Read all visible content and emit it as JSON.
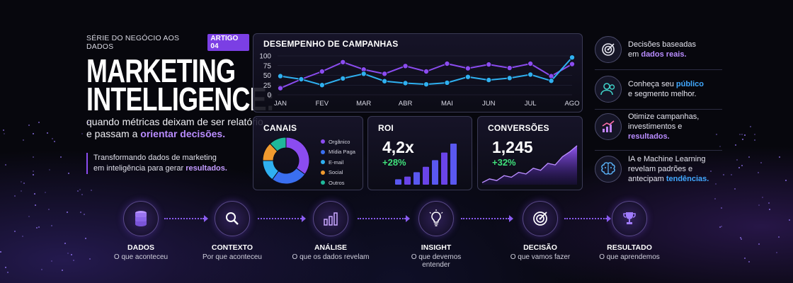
{
  "hero": {
    "series": "SÉRIE DO NEGÓCIO AOS DADOS",
    "badge": "ARTIGO 04",
    "title_line1": "MARKETING",
    "title_line2": "INTELLIGENCE:",
    "subtitle_line1": "quando métricas deixam de ser relatório",
    "subtitle_line2_a": "e passam a ",
    "subtitle_line2_hl": "orientar decisões.",
    "tagline_line1": "Transformando dados de marketing",
    "tagline_line2_a": "em inteligência para gerar ",
    "tagline_line2_hl": "resultados."
  },
  "campaign": {
    "title": "DESEMPENHO DE CAMPANHAS",
    "accent_purple": "#8b4cf0",
    "accent_cyan": "#2fb0f0"
  },
  "canais": {
    "title": "CANAIS",
    "items": [
      {
        "label": "Orgânico",
        "color": "#8b4cf0"
      },
      {
        "label": "Mídia Paga",
        "color": "#3a6ff0"
      },
      {
        "label": "E-mail",
        "color": "#2fb0f0"
      },
      {
        "label": "Social",
        "color": "#f09a2f"
      },
      {
        "label": "Outros",
        "color": "#1fb89a"
      }
    ]
  },
  "roi": {
    "title": "ROI",
    "value": "4,2x",
    "delta": "+28%"
  },
  "conversoes": {
    "title": "CONVERSÕES",
    "value": "1,245",
    "delta": "+32%"
  },
  "features": [
    {
      "icon": "target-icon",
      "line1": "Decisões baseadas",
      "line2_a": "em ",
      "line2_hl": "dados reais.",
      "hl_color": "purple"
    },
    {
      "icon": "users-icon",
      "line1_a": "Conheça seu ",
      "line1_hl": "público",
      "line2": "e segmento melhor.",
      "hl_color": "blue"
    },
    {
      "icon": "growth-chart-icon",
      "line1": "Otimize campanhas,",
      "line2": "investimentos e",
      "line3_hl": "resultados.",
      "hl_color": "purple"
    },
    {
      "icon": "brain-icon",
      "line1": "IA e Machine Learning",
      "line2": "revelam padrões e",
      "line3_a": "antecipam ",
      "line3_hl": "tendências.",
      "hl_color": "blue"
    }
  ],
  "flow": [
    {
      "icon": "database-icon",
      "label": "DADOS",
      "desc": "O que aconteceu"
    },
    {
      "icon": "magnifier-icon",
      "label": "CONTEXTO",
      "desc": "Por que aconteceu"
    },
    {
      "icon": "bar-chart-icon",
      "label": "ANÁLISE",
      "desc": "O que os dados revelam"
    },
    {
      "icon": "lightbulb-icon",
      "label": "INSIGHT",
      "desc": "O que devemos entender"
    },
    {
      "icon": "target-icon",
      "label": "DECISÃO",
      "desc": "O que vamos fazer"
    },
    {
      "icon": "trophy-icon",
      "label": "RESULTADO",
      "desc": "O que aprendemos"
    }
  ],
  "chart_data": [
    {
      "type": "line",
      "title": "DESEMPENHO DE CAMPANHAS",
      "categories": [
        "JAN",
        "FEV",
        "MAR",
        "ABR",
        "MAI",
        "JUN",
        "JUL",
        "AGO"
      ],
      "yticks": [
        0,
        25,
        50,
        75,
        100
      ],
      "ylim": [
        0,
        100
      ],
      "grid": true,
      "series": [
        {
          "color": "#8b4cf0",
          "x": [
            0,
            0.5,
            1,
            1.5,
            2,
            2.5,
            3,
            3.5,
            4,
            4.5,
            5,
            5.5,
            6,
            6.5,
            7
          ],
          "values": [
            17,
            40,
            60,
            84,
            65,
            54,
            74,
            60,
            80,
            68,
            78,
            69,
            80,
            48,
            79
          ]
        },
        {
          "color": "#2fb0f0",
          "x": [
            0,
            0.5,
            1,
            1.5,
            2,
            2.5,
            3,
            3.5,
            4,
            4.5,
            5,
            5.5,
            6,
            6.5,
            7
          ],
          "values": [
            48,
            40,
            25,
            42,
            54,
            35,
            30,
            27,
            31,
            46,
            38,
            43,
            52,
            36,
            96
          ]
        }
      ]
    },
    {
      "type": "pie",
      "title": "CANAIS",
      "labels": [
        "Orgânico",
        "Mídia Paga",
        "E-mail",
        "Social",
        "Outros"
      ],
      "values": [
        35,
        25,
        15,
        13,
        12
      ]
    },
    {
      "type": "bar",
      "title": "ROI",
      "values": [
        12,
        18,
        28,
        40,
        55,
        72,
        92
      ]
    },
    {
      "type": "area",
      "title": "CONVERSÕES",
      "values": [
        5,
        14,
        10,
        22,
        18,
        30,
        26,
        40,
        35,
        52,
        48,
        68,
        80,
        95
      ]
    }
  ]
}
